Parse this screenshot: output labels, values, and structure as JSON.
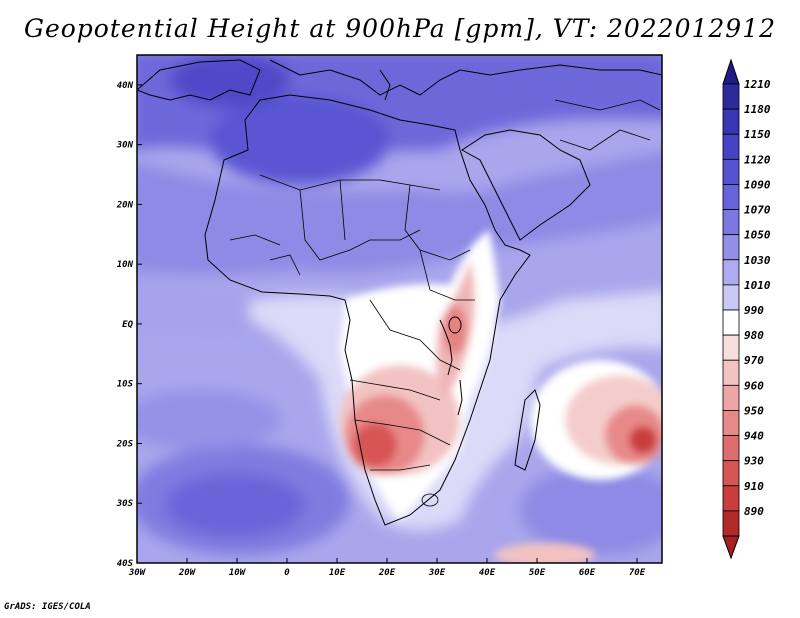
{
  "title": "Geopotential Height at 900hPa [gpm], VT: 2022012912",
  "credit": "GrADS: IGES/COLA",
  "map": {
    "projection": "latlon",
    "lon_range": [
      -30,
      75
    ],
    "lat_range": [
      -40,
      45
    ],
    "lat_ticks": [
      {
        "value": 40,
        "label": "40N"
      },
      {
        "value": 30,
        "label": "30N"
      },
      {
        "value": 20,
        "label": "20N"
      },
      {
        "value": 10,
        "label": "10N"
      },
      {
        "value": 0,
        "label": "EQ"
      },
      {
        "value": -10,
        "label": "10S"
      },
      {
        "value": -20,
        "label": "20S"
      },
      {
        "value": -30,
        "label": "30S"
      },
      {
        "value": -40,
        "label": "40S"
      }
    ],
    "lon_ticks": [
      {
        "value": -30,
        "label": "30W"
      },
      {
        "value": -20,
        "label": "20W"
      },
      {
        "value": -10,
        "label": "10W"
      },
      {
        "value": 0,
        "label": "0"
      },
      {
        "value": 10,
        "label": "10E"
      },
      {
        "value": 20,
        "label": "20E"
      },
      {
        "value": 30,
        "label": "30E"
      },
      {
        "value": 40,
        "label": "40E"
      },
      {
        "value": 50,
        "label": "50E"
      },
      {
        "value": 60,
        "label": "60E"
      },
      {
        "value": 70,
        "label": "70E"
      }
    ]
  },
  "colorbar": {
    "levels": [
      {
        "label": "1210",
        "color": "#2e2a9e"
      },
      {
        "label": "1180",
        "color": "#3a35b3"
      },
      {
        "label": "1150",
        "color": "#4843c4"
      },
      {
        "label": "1120",
        "color": "#5752d0"
      },
      {
        "label": "1090",
        "color": "#6863d9"
      },
      {
        "label": "1070",
        "color": "#7c78e0"
      },
      {
        "label": "1050",
        "color": "#938fe7"
      },
      {
        "label": "1030",
        "color": "#aeabee"
      },
      {
        "label": "1010",
        "color": "#cac8f5"
      },
      {
        "label": "990",
        "color": "#ffffff"
      },
      {
        "label": "980",
        "color": "#f9dede"
      },
      {
        "label": "970",
        "color": "#f3c2c2"
      },
      {
        "label": "960",
        "color": "#eda5a5"
      },
      {
        "label": "950",
        "color": "#e88989"
      },
      {
        "label": "940",
        "color": "#e06d6d"
      },
      {
        "label": "930",
        "color": "#d85555"
      },
      {
        "label": "910",
        "color": "#c93d3d"
      },
      {
        "label": "890",
        "color": "#b32a2a"
      }
    ],
    "top_arrow_color": "#1f1a8c",
    "bottom_arrow_color": "#a52020"
  }
}
